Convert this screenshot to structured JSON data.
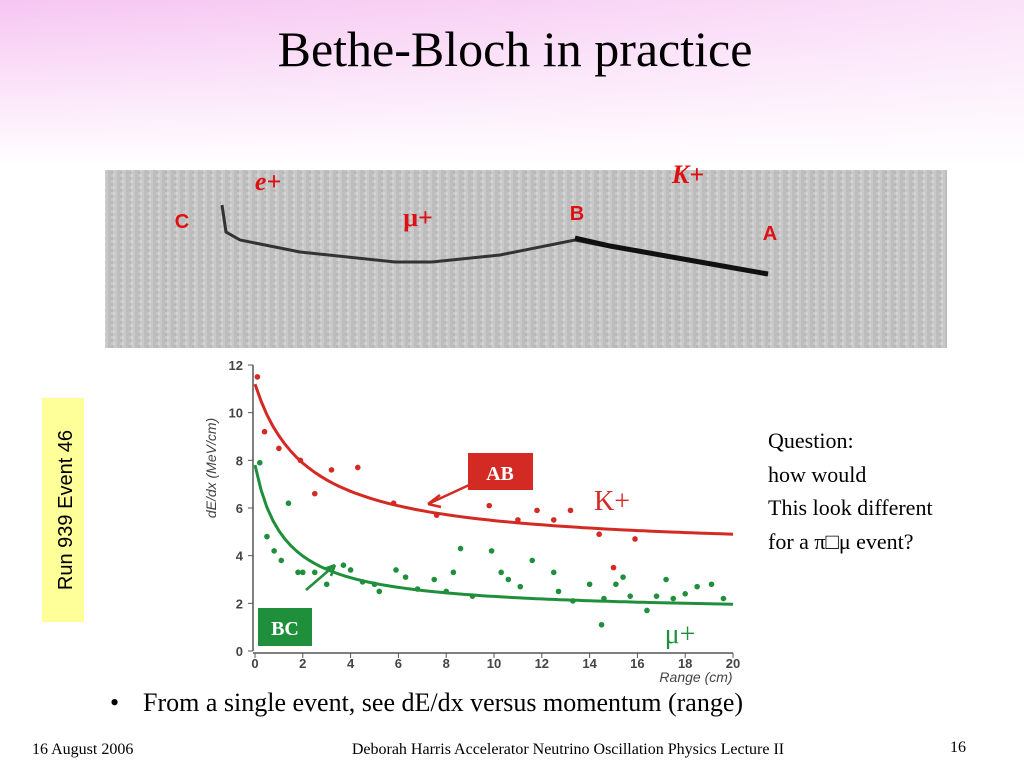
{
  "title": "Bethe-Bloch in practice",
  "event_image": {
    "labels": [
      "e+",
      "μ+",
      "K+",
      "C",
      "B",
      "A"
    ]
  },
  "side_label": "Run 939 Event 46",
  "plot": {
    "y_label": "dE/dx (MeV/cm)",
    "x_label": "Range (cm)",
    "xlim": [
      0,
      20
    ],
    "ylim": [
      0,
      12
    ],
    "xticks": [
      0,
      2,
      4,
      6,
      8,
      10,
      12,
      14,
      16,
      18,
      20
    ],
    "yticks": [
      0,
      2,
      4,
      6,
      8,
      10,
      12
    ],
    "series": [
      {
        "name": "K+",
        "callout": "AB",
        "color": "#d42a24",
        "x": [
          0.1,
          0.4,
          1.0,
          1.9,
          2.5,
          3.2,
          4.3,
          5.8,
          7.6,
          9.8,
          11.0,
          11.8,
          12.5,
          13.2,
          14.4,
          15.0,
          15.9
        ],
        "y": [
          11.5,
          9.2,
          8.5,
          8.0,
          6.6,
          7.6,
          7.7,
          6.2,
          5.7,
          6.1,
          5.5,
          5.9,
          5.5,
          5.9,
          4.9,
          3.5,
          4.7
        ]
      },
      {
        "name": "μ+",
        "callout": "BC",
        "color": "#1f8f3c",
        "x": [
          0.2,
          0.5,
          0.8,
          1.1,
          1.4,
          1.8,
          2.0,
          2.5,
          3.0,
          3.7,
          4.0,
          4.5,
          5.0,
          5.2,
          5.9,
          6.3,
          6.8,
          7.5,
          8.0,
          8.3,
          8.6,
          9.1,
          9.9,
          10.3,
          10.6,
          11.1,
          11.6,
          12.5,
          12.7,
          13.3,
          14.0,
          14.5,
          14.6,
          15.1,
          15.4,
          15.7,
          16.4,
          16.8,
          17.2,
          17.5,
          18.0,
          18.5,
          19.1,
          19.6
        ],
        "y": [
          7.9,
          4.8,
          4.2,
          3.8,
          6.2,
          3.3,
          3.3,
          3.3,
          2.8,
          3.6,
          3.4,
          2.9,
          2.8,
          2.5,
          3.4,
          3.1,
          2.6,
          3.0,
          2.5,
          3.3,
          4.3,
          2.3,
          4.2,
          3.3,
          3.0,
          2.7,
          3.8,
          3.3,
          2.5,
          2.1,
          2.8,
          1.1,
          2.2,
          2.8,
          3.1,
          2.3,
          1.7,
          2.3,
          3.0,
          2.2,
          2.4,
          2.7,
          2.8,
          2.2
        ]
      }
    ]
  },
  "question": [
    "Question:",
    "how would",
    "This look different",
    "for a π□μ event?"
  ],
  "bullet": "From a single event, see dE/dx versus momentum (range)",
  "footer": {
    "date": "16 August 2006",
    "credit": "Deborah Harris  Accelerator Neutrino Oscillation Physics Lecture II",
    "page": "16"
  }
}
